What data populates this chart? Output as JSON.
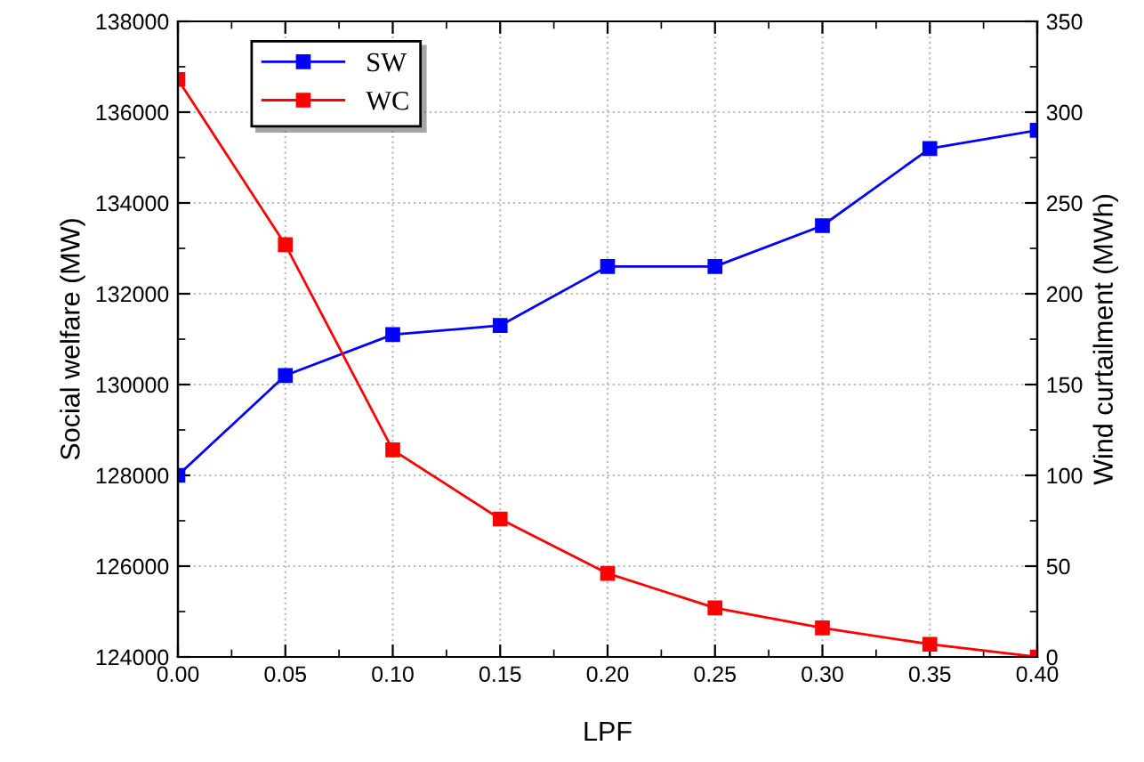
{
  "chart_data": {
    "type": "line",
    "xlabel": "LPF",
    "ylabel": "Social welfare (MW)",
    "y2label": "Wind curtailment (MWh)",
    "x": [
      0.0,
      0.05,
      0.1,
      0.15,
      0.2,
      0.25,
      0.3,
      0.35,
      0.4
    ],
    "series": [
      {
        "name": "SW",
        "color": "#0000ff",
        "values": [
          128000,
          130200,
          131100,
          131300,
          132600,
          132600,
          133500,
          135200,
          135600
        ]
      },
      {
        "name": "WC",
        "color": "#ff0000",
        "axis": "y2",
        "values": [
          318,
          227,
          114,
          76,
          46,
          27,
          16,
          7,
          0
        ]
      }
    ],
    "xlim": [
      0.0,
      0.4
    ],
    "xticks": [
      {
        "value": 0.0,
        "label": "0.00"
      },
      {
        "value": 0.05,
        "label": "0.05"
      },
      {
        "value": 0.1,
        "label": "0.10"
      },
      {
        "value": 0.15,
        "label": "0.15"
      },
      {
        "value": 0.2,
        "label": "0.20"
      },
      {
        "value": 0.25,
        "label": "0.25"
      },
      {
        "value": 0.3,
        "label": "0.30"
      },
      {
        "value": 0.35,
        "label": "0.35"
      },
      {
        "value": 0.4,
        "label": "0.40"
      }
    ],
    "ylim": [
      124000,
      138000
    ],
    "yticks": [
      124000,
      126000,
      128000,
      130000,
      132000,
      134000,
      136000,
      138000
    ],
    "y2lim": [
      0,
      350
    ],
    "y2ticks": [
      0,
      50,
      100,
      150,
      200,
      250,
      300,
      350
    ],
    "grid": true,
    "legend": "top left",
    "marker": "square",
    "line_style": "solid"
  }
}
